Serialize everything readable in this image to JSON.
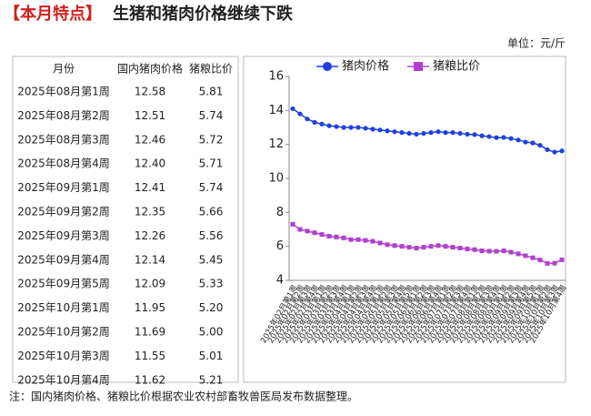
{
  "header": {
    "title_mark": "【本月特点】",
    "title": "生猪和猪肉价格继续下跌",
    "unit": "单位：元/斤"
  },
  "table": {
    "columns": [
      "月份",
      "国内猪肉价格",
      "猪粮比价"
    ],
    "rows": [
      [
        "2025年08月第1周",
        "12.58",
        "5.81"
      ],
      [
        "2025年08月第2周",
        "12.51",
        "5.74"
      ],
      [
        "2025年08月第3周",
        "12.46",
        "5.72"
      ],
      [
        "2025年08月第4周",
        "12.40",
        "5.71"
      ],
      [
        "2025年09月第1周",
        "12.41",
        "5.74"
      ],
      [
        "2025年09月第2周",
        "12.35",
        "5.66"
      ],
      [
        "2025年09月第3周",
        "12.26",
        "5.56"
      ],
      [
        "2025年09月第4周",
        "12.14",
        "5.45"
      ],
      [
        "2025年09月第5周",
        "12.09",
        "5.33"
      ],
      [
        "2025年10月第1周",
        "11.95",
        "5.20"
      ],
      [
        "2025年10月第2周",
        "11.69",
        "5.00"
      ],
      [
        "2025年10月第3周",
        "11.55",
        "5.01"
      ],
      [
        "2025年10月第4周",
        "11.62",
        "5.21"
      ]
    ]
  },
  "chart_data": {
    "type": "line",
    "categories": [
      "2025年02月第1周",
      "2025年02月第2周",
      "2025年02月第3周",
      "2025年02月第4周",
      "2025年03月第1周",
      "2025年03月第2周",
      "2025年03月第3周",
      "2025年03月第4周",
      "2025年04月第1周",
      "2025年04月第2周",
      "2025年04月第3周",
      "2025年04月第4周",
      "2025年05月第1周",
      "2025年05月第2周",
      "2025年05月第3周",
      "2025年05月第4周",
      "2025年05月第5周",
      "2025年06月第1周",
      "2025年06月第2周",
      "2025年06月第3周",
      "2025年06月第4周",
      "2025年07月第1周",
      "2025年07月第2周",
      "2025年07月第3周",
      "2025年07月第4周",
      "2025年08月第1周",
      "2025年08月第2周",
      "2025年08月第3周",
      "2025年08月第4周",
      "2025年09月第1周",
      "2025年09月第2周",
      "2025年09月第3周",
      "2025年09月第4周",
      "2025年09月第5周",
      "2025年10月第1周",
      "2025年10月第2周",
      "2025年10月第3周",
      "2025年10月第4周"
    ],
    "series": [
      {
        "name": "猪肉价格",
        "color": "#1f3fe0",
        "marker": "circle",
        "values": [
          14.1,
          13.8,
          13.5,
          13.3,
          13.2,
          13.1,
          13.05,
          13.0,
          13.0,
          13.0,
          12.95,
          12.9,
          12.85,
          12.8,
          12.75,
          12.7,
          12.65,
          12.6,
          12.65,
          12.7,
          12.75,
          12.7,
          12.7,
          12.65,
          12.6,
          12.58,
          12.51,
          12.46,
          12.4,
          12.41,
          12.35,
          12.26,
          12.14,
          12.09,
          11.95,
          11.69,
          11.55,
          11.62
        ]
      },
      {
        "name": "猪粮比价",
        "color": "#b040d0",
        "marker": "square",
        "values": [
          7.3,
          7.0,
          6.9,
          6.8,
          6.7,
          6.6,
          6.55,
          6.5,
          6.4,
          6.4,
          6.35,
          6.3,
          6.2,
          6.1,
          6.05,
          6.0,
          5.95,
          5.9,
          5.95,
          6.0,
          6.05,
          6.0,
          5.95,
          5.9,
          5.85,
          5.81,
          5.74,
          5.72,
          5.71,
          5.74,
          5.66,
          5.56,
          5.45,
          5.33,
          5.2,
          5.0,
          5.01,
          5.21
        ]
      }
    ],
    "ylim": [
      4,
      16
    ],
    "yticks": [
      4,
      6,
      8,
      10,
      12,
      14,
      16
    ]
  },
  "footnote": "注：国内猪肉价格、猪粮比价根据农业农村部畜牧兽医局发布数据整理。"
}
